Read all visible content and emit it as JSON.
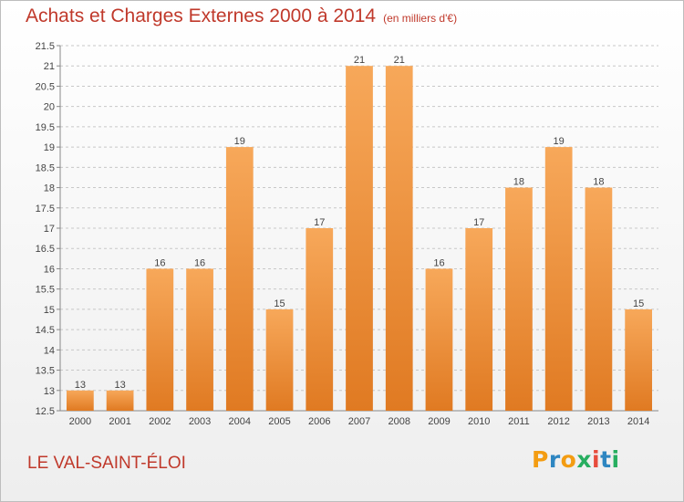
{
  "chart_data": {
    "type": "bar",
    "title": "Achats et Charges Externes 2000 à 2014",
    "subtitle": "(en milliers d'€)",
    "categories": [
      "2000",
      "2001",
      "2002",
      "2003",
      "2004",
      "2005",
      "2006",
      "2007",
      "2008",
      "2009",
      "2010",
      "2011",
      "2012",
      "2013",
      "2014"
    ],
    "values": [
      13,
      13,
      16,
      16,
      19,
      15,
      17,
      21,
      21,
      16,
      17,
      18,
      19,
      18,
      15
    ],
    "data_labels": [
      "13",
      "13",
      "16",
      "16",
      "19",
      "15",
      "17",
      "21",
      "21",
      "16",
      "17",
      "18",
      "19",
      "18",
      "15"
    ],
    "ylim": [
      12.5,
      21.5
    ],
    "yticks": [
      12.5,
      13,
      13.5,
      14,
      14.5,
      15,
      15.5,
      16,
      16.5,
      17,
      17.5,
      18,
      18.5,
      19,
      19.5,
      20,
      20.5,
      21,
      21.5
    ],
    "ytick_labels": [
      "12.5",
      "13",
      "13.5",
      "14",
      "14.5",
      "15",
      "15.5",
      "16",
      "16.5",
      "17",
      "17.5",
      "18",
      "18.5",
      "19",
      "19.5",
      "20",
      "20.5",
      "21",
      "21.5"
    ],
    "grid": true,
    "legend": "none",
    "colors": {
      "bar_light": "#f7a85a",
      "bar_dark": "#e07a22",
      "text": "#c0392b",
      "grid": "#c8c8c8"
    }
  },
  "place_name": "LE VAL-SAINT-ÉLOI",
  "logo": {
    "letters": [
      "P",
      "r",
      "o",
      "x",
      "i",
      "t",
      "i"
    ],
    "colors": [
      "#f39c12",
      "#2e86c1",
      "#f39c12",
      "#27ae60",
      "#e74c3c",
      "#2e86c1",
      "#27ae60"
    ]
  }
}
